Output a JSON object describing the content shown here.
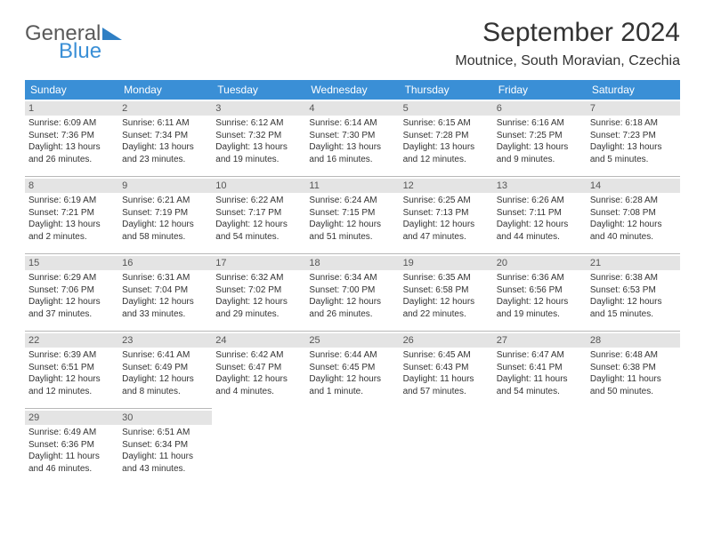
{
  "logo": {
    "text1": "General",
    "text2": "Blue"
  },
  "title": "September 2024",
  "location": "Moutnice, South Moravian, Czechia",
  "weekdays": [
    "Sunday",
    "Monday",
    "Tuesday",
    "Wednesday",
    "Thursday",
    "Friday",
    "Saturday"
  ],
  "colors": {
    "header_bg": "#3a8fd6",
    "header_fg": "#ffffff",
    "daynum_bg": "#e4e4e4",
    "daynum_fg": "#555555",
    "border": "#b8b8b8",
    "text": "#333333",
    "logo_gray": "#5a5a5a",
    "logo_blue": "#3a8fd6"
  },
  "days": [
    {
      "n": 1,
      "sr": "6:09 AM",
      "ss": "7:36 PM",
      "dl": "13 hours and 26 minutes."
    },
    {
      "n": 2,
      "sr": "6:11 AM",
      "ss": "7:34 PM",
      "dl": "13 hours and 23 minutes."
    },
    {
      "n": 3,
      "sr": "6:12 AM",
      "ss": "7:32 PM",
      "dl": "13 hours and 19 minutes."
    },
    {
      "n": 4,
      "sr": "6:14 AM",
      "ss": "7:30 PM",
      "dl": "13 hours and 16 minutes."
    },
    {
      "n": 5,
      "sr": "6:15 AM",
      "ss": "7:28 PM",
      "dl": "13 hours and 12 minutes."
    },
    {
      "n": 6,
      "sr": "6:16 AM",
      "ss": "7:25 PM",
      "dl": "13 hours and 9 minutes."
    },
    {
      "n": 7,
      "sr": "6:18 AM",
      "ss": "7:23 PM",
      "dl": "13 hours and 5 minutes."
    },
    {
      "n": 8,
      "sr": "6:19 AM",
      "ss": "7:21 PM",
      "dl": "13 hours and 2 minutes."
    },
    {
      "n": 9,
      "sr": "6:21 AM",
      "ss": "7:19 PM",
      "dl": "12 hours and 58 minutes."
    },
    {
      "n": 10,
      "sr": "6:22 AM",
      "ss": "7:17 PM",
      "dl": "12 hours and 54 minutes."
    },
    {
      "n": 11,
      "sr": "6:24 AM",
      "ss": "7:15 PM",
      "dl": "12 hours and 51 minutes."
    },
    {
      "n": 12,
      "sr": "6:25 AM",
      "ss": "7:13 PM",
      "dl": "12 hours and 47 minutes."
    },
    {
      "n": 13,
      "sr": "6:26 AM",
      "ss": "7:11 PM",
      "dl": "12 hours and 44 minutes."
    },
    {
      "n": 14,
      "sr": "6:28 AM",
      "ss": "7:08 PM",
      "dl": "12 hours and 40 minutes."
    },
    {
      "n": 15,
      "sr": "6:29 AM",
      "ss": "7:06 PM",
      "dl": "12 hours and 37 minutes."
    },
    {
      "n": 16,
      "sr": "6:31 AM",
      "ss": "7:04 PM",
      "dl": "12 hours and 33 minutes."
    },
    {
      "n": 17,
      "sr": "6:32 AM",
      "ss": "7:02 PM",
      "dl": "12 hours and 29 minutes."
    },
    {
      "n": 18,
      "sr": "6:34 AM",
      "ss": "7:00 PM",
      "dl": "12 hours and 26 minutes."
    },
    {
      "n": 19,
      "sr": "6:35 AM",
      "ss": "6:58 PM",
      "dl": "12 hours and 22 minutes."
    },
    {
      "n": 20,
      "sr": "6:36 AM",
      "ss": "6:56 PM",
      "dl": "12 hours and 19 minutes."
    },
    {
      "n": 21,
      "sr": "6:38 AM",
      "ss": "6:53 PM",
      "dl": "12 hours and 15 minutes."
    },
    {
      "n": 22,
      "sr": "6:39 AM",
      "ss": "6:51 PM",
      "dl": "12 hours and 12 minutes."
    },
    {
      "n": 23,
      "sr": "6:41 AM",
      "ss": "6:49 PM",
      "dl": "12 hours and 8 minutes."
    },
    {
      "n": 24,
      "sr": "6:42 AM",
      "ss": "6:47 PM",
      "dl": "12 hours and 4 minutes."
    },
    {
      "n": 25,
      "sr": "6:44 AM",
      "ss": "6:45 PM",
      "dl": "12 hours and 1 minute."
    },
    {
      "n": 26,
      "sr": "6:45 AM",
      "ss": "6:43 PM",
      "dl": "11 hours and 57 minutes."
    },
    {
      "n": 27,
      "sr": "6:47 AM",
      "ss": "6:41 PM",
      "dl": "11 hours and 54 minutes."
    },
    {
      "n": 28,
      "sr": "6:48 AM",
      "ss": "6:38 PM",
      "dl": "11 hours and 50 minutes."
    },
    {
      "n": 29,
      "sr": "6:49 AM",
      "ss": "6:36 PM",
      "dl": "11 hours and 46 minutes."
    },
    {
      "n": 30,
      "sr": "6:51 AM",
      "ss": "6:34 PM",
      "dl": "11 hours and 43 minutes."
    }
  ],
  "labels": {
    "sunrise": "Sunrise:",
    "sunset": "Sunset:",
    "daylight": "Daylight:"
  }
}
